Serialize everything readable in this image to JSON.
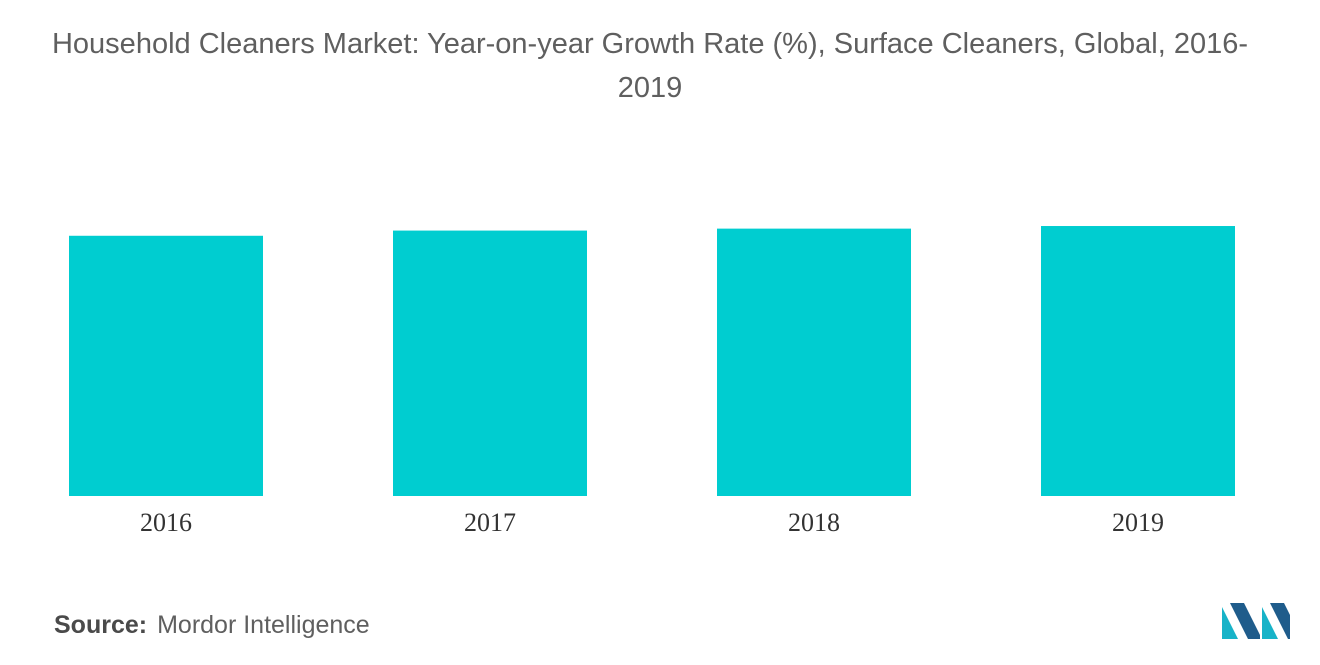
{
  "title": "Household Cleaners Market: Year-on-year Growth Rate (%), Surface Cleaners, Global, 2016-2019",
  "source": {
    "label": "Source:",
    "text": "Mordor Intelligence"
  },
  "colors": {
    "bar": "#00CDD0",
    "logo_dark": "#1F5C8B",
    "logo_light": "#18B3C8"
  },
  "logo": {
    "icon": "mordor-intelligence-logo-icon"
  },
  "chart_data": {
    "type": "bar",
    "categories": [
      "2016",
      "2017",
      "2018",
      "2019"
    ],
    "values": [
      4.0,
      4.08,
      4.11,
      4.15
    ],
    "title": "Household Cleaners Market: Year-on-year Growth Rate (%), Surface Cleaners, Global, 2016-2019",
    "xlabel": "",
    "ylabel": "",
    "ylim": [
      0,
      4.55
    ],
    "grid": false,
    "legend": "none"
  }
}
